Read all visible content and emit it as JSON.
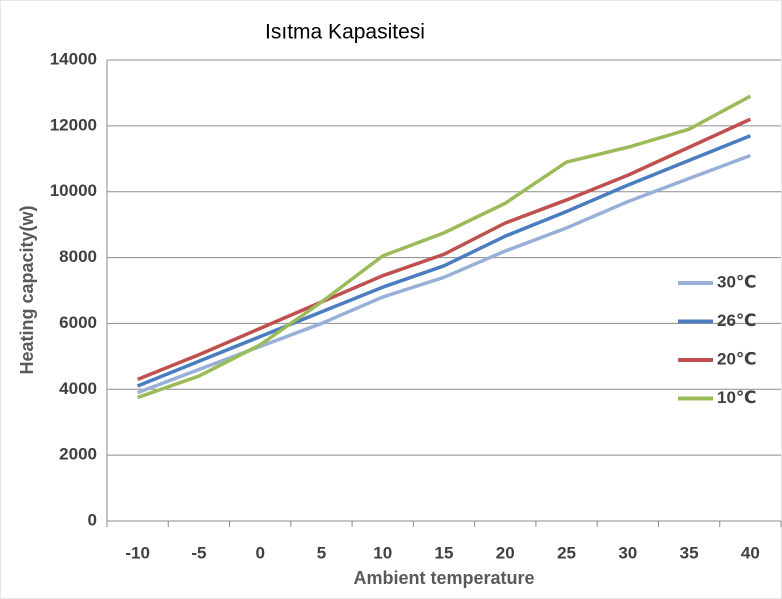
{
  "chart_data": {
    "type": "line",
    "title": "Isıtma Kapasitesi",
    "x_label": "Ambient temperature",
    "y_label": "Heating capacity(w)",
    "categories": [
      "-10",
      "-5",
      "0",
      "5",
      "10",
      "15",
      "20",
      "25",
      "30",
      "35",
      "40"
    ],
    "series": [
      {
        "name": "30℃",
        "color": "#98b0d8",
        "values": [
          3900,
          4600,
          5300,
          6000,
          6800,
          7400,
          8200,
          8900,
          9700,
          10400,
          11100
        ]
      },
      {
        "name": "26℃",
        "color": "#4a7cc0",
        "values": [
          4100,
          4850,
          5600,
          6350,
          7100,
          7750,
          8650,
          9400,
          10200,
          10950,
          11700
        ]
      },
      {
        "name": "20℃",
        "color": "#c0504d",
        "values": [
          4300,
          5050,
          5850,
          6650,
          7450,
          8100,
          9050,
          9750,
          10500,
          11350,
          12200
        ]
      },
      {
        "name": "10℃",
        "color": "#9bbb59",
        "values": [
          3750,
          4400,
          5350,
          6650,
          8050,
          8750,
          9650,
          10900,
          11350,
          11900,
          12900
        ]
      }
    ],
    "ylim": [
      0,
      14000
    ],
    "yticks": [
      0,
      2000,
      4000,
      6000,
      8000,
      10000,
      12000,
      14000
    ],
    "grid": true,
    "legend": "right"
  }
}
